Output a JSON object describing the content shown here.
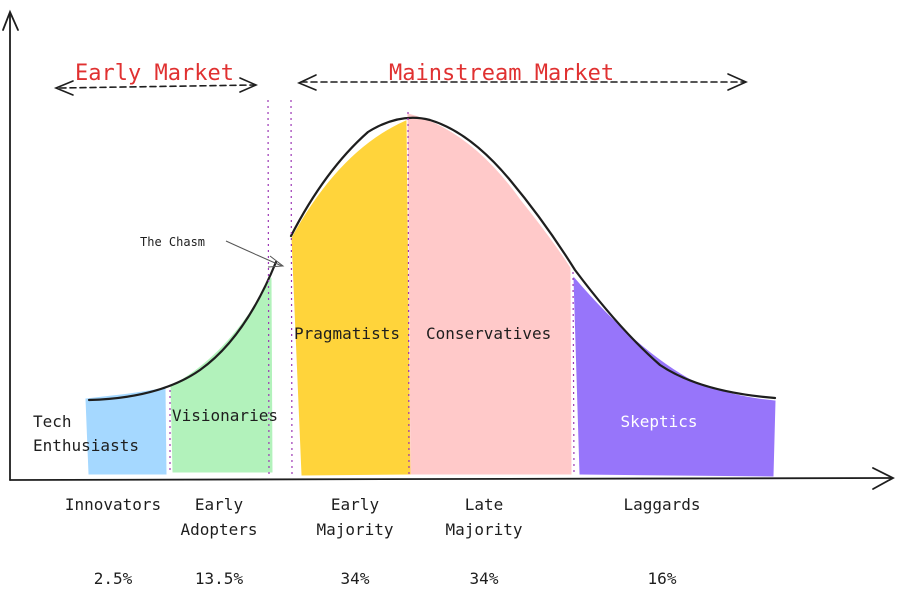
{
  "markets": {
    "early": "Early Market",
    "mainstream": "Mainstream Market"
  },
  "annotation": {
    "chasm": "The Chasm"
  },
  "segments": [
    {
      "name": "Tech Enthusiasts",
      "lines": [
        "Tech",
        "Enthusiasts"
      ],
      "color": "#a5d8ff",
      "category": [
        "Innovators"
      ],
      "percent": "2.5%",
      "label_color": "#1e1e1e"
    },
    {
      "name": "Visionaries",
      "lines": [
        "Visionaries"
      ],
      "color": "#b2f2bb",
      "category": [
        "Early",
        "Adopters"
      ],
      "percent": "13.5%",
      "label_color": "#1e1e1e"
    },
    {
      "name": "Pragmatists",
      "lines": [
        "Pragmatists"
      ],
      "color": "#ffd43b",
      "category": [
        "Early",
        "Majority"
      ],
      "percent": "34%",
      "label_color": "#1e1e1e"
    },
    {
      "name": "Conservatives",
      "lines": [
        "Conservatives"
      ],
      "color": "#ffc9c9",
      "category": [
        "Late",
        "Majority"
      ],
      "percent": "34%",
      "label_color": "#1e1e1e"
    },
    {
      "name": "Skeptics",
      "lines": [
        "Skeptics"
      ],
      "color": "#9775fa",
      "category": [
        "Laggards"
      ],
      "percent": "16%",
      "label_color": "#ffffff"
    }
  ],
  "colors": {
    "stroke": "#1e1e1e",
    "market_label": "#e03131",
    "divider": "#9c36b5"
  }
}
